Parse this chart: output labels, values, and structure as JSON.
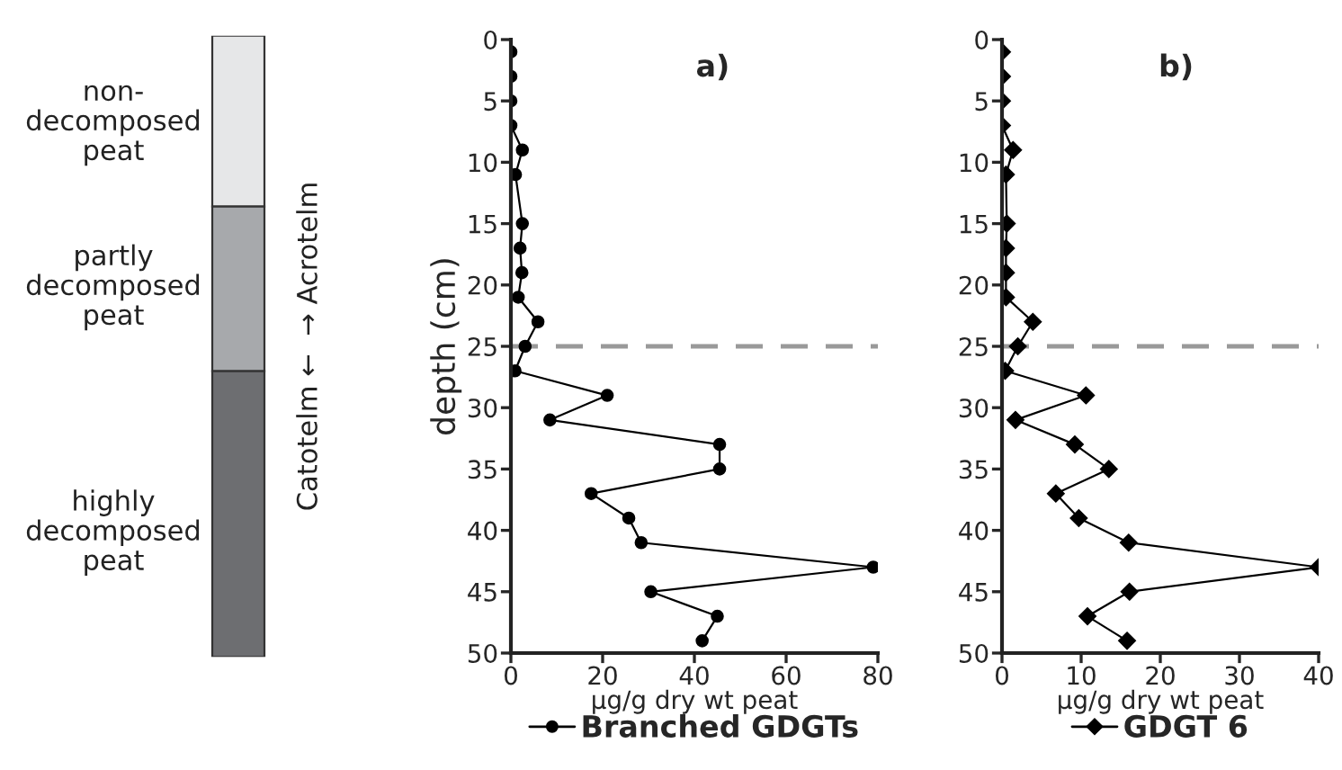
{
  "chart_data": [
    {
      "type": "other",
      "annotations": [
        "non-\ndecomposed\npeat",
        "partly\ndecomposed\npeat",
        "highly\ndecomposed\npeat",
        "Catotelm ←  → Acrotelm"
      ]
    },
    {
      "type": "line",
      "title": "a)",
      "orientation": "horizontal",
      "xlabel": "µg/g dry wt peat",
      "ylabel": "depth (cm)",
      "xlim": [
        0,
        80
      ],
      "xticks": [
        0,
        20,
        40,
        60,
        80
      ],
      "ylim": [
        50,
        0
      ],
      "yticks": [
        0,
        5,
        10,
        15,
        20,
        25,
        30,
        35,
        40,
        45,
        50
      ],
      "grid": false,
      "legend": "bottom",
      "marker": "circle",
      "line_style": "solid",
      "ref_lines": [
        {
          "axis": "y",
          "value": 25,
          "color": "#999999",
          "line_style": "dashed"
        }
      ],
      "series": [
        {
          "name": "Branched GDGTs",
          "color": "#000000",
          "x": [
            1,
            3,
            5,
            7,
            9,
            11,
            15,
            17,
            19,
            21,
            23,
            25,
            27,
            29,
            31,
            33,
            35,
            37,
            39,
            41,
            43,
            45,
            47,
            49
          ],
          "values": [
            0,
            0,
            0,
            0,
            2.5,
            1,
            2.5,
            2,
            2.4,
            1.6,
            5.9,
            3.1,
            0.9,
            21,
            8.5,
            45.5,
            45.5,
            17.5,
            25.7,
            28.4,
            79,
            30.5,
            45,
            41.7
          ]
        }
      ]
    },
    {
      "type": "line",
      "title": "b)",
      "orientation": "horizontal",
      "xlabel": "µg/g dry wt peat",
      "xlim": [
        0,
        40
      ],
      "xticks": [
        0,
        10,
        20,
        30,
        40
      ],
      "ylim": [
        50,
        0
      ],
      "yticks": [
        0,
        5,
        10,
        15,
        20,
        25,
        30,
        35,
        40,
        45,
        50
      ],
      "grid": false,
      "legend": "bottom",
      "marker": "diamond",
      "line_style": "solid",
      "ref_lines": [
        {
          "axis": "y",
          "value": 25,
          "color": "#999999",
          "line_style": "dashed"
        }
      ],
      "series": [
        {
          "name": "GDGT 6",
          "color": "#000000",
          "x": [
            1,
            3,
            5,
            7,
            9,
            11,
            15,
            17,
            19,
            21,
            23,
            25,
            27,
            29,
            31,
            33,
            35,
            37,
            39,
            41,
            43,
            45,
            47,
            49
          ],
          "values": [
            0,
            0,
            0,
            0,
            1.4,
            0.5,
            0.6,
            0.5,
            0.5,
            0.5,
            3.9,
            2.0,
            0.4,
            10.6,
            1.7,
            9.2,
            13.5,
            6.8,
            9.7,
            16,
            40,
            16.1,
            10.8,
            15.8
          ]
        }
      ]
    }
  ]
}
